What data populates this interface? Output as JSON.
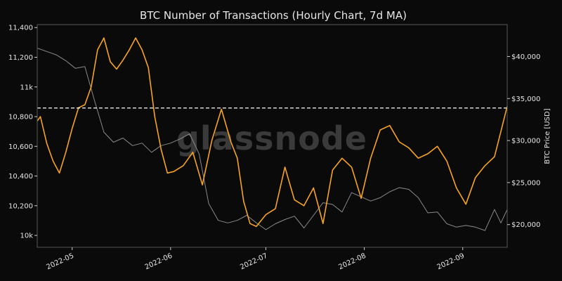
{
  "chart_data": {
    "type": "line",
    "title": "BTC Number of Transactions (Hourly Chart, 7d MA)",
    "watermark": "glassnode",
    "xlabel": "",
    "ylabel_left": "",
    "ylabel_right": "BTC Price [USD]",
    "x_ticks": [
      "2022-05",
      "2022-06",
      "2022-07",
      "2022-08",
      "2022-09"
    ],
    "y_left_ticks": [
      {
        "value": 10000,
        "label": "10k"
      },
      {
        "value": 10200,
        "label": "10,200"
      },
      {
        "value": 10400,
        "label": "10,400"
      },
      {
        "value": 10600,
        "label": "10,600"
      },
      {
        "value": 10800,
        "label": "10,800"
      },
      {
        "value": 11000,
        "label": "11k"
      },
      {
        "value": 11200,
        "label": "11,200"
      },
      {
        "value": 11400,
        "label": "11,400"
      }
    ],
    "y_right_ticks": [
      {
        "value": 20000,
        "label": "$20,000"
      },
      {
        "value": 25000,
        "label": "$25,000"
      },
      {
        "value": 30000,
        "label": "$30,000"
      },
      {
        "value": 35000,
        "label": "$35,000"
      },
      {
        "value": 40000,
        "label": "$40,000"
      }
    ],
    "ylim_left": [
      9920,
      11420
    ],
    "ylim_right": [
      17300,
      43800
    ],
    "xlim": [
      "2022-04-20",
      "2022-09-15"
    ],
    "grid": false,
    "reference_line": {
      "y": 10858,
      "style": "dashed",
      "color": "#ffffff"
    },
    "series": [
      {
        "axis": "left",
        "color": "#f7a325",
        "x": [
          "2022-04-20",
          "2022-04-21",
          "2022-04-23",
          "2022-04-25",
          "2022-04-27",
          "2022-04-29",
          "2022-05-01",
          "2022-05-03",
          "2022-05-05",
          "2022-05-07",
          "2022-05-09",
          "2022-05-11",
          "2022-05-13",
          "2022-05-15",
          "2022-05-17",
          "2022-05-19",
          "2022-05-21",
          "2022-05-23",
          "2022-05-25",
          "2022-05-27",
          "2022-05-29",
          "2022-05-31",
          "2022-06-02",
          "2022-06-05",
          "2022-06-08",
          "2022-06-11",
          "2022-06-14",
          "2022-06-17",
          "2022-06-20",
          "2022-06-22",
          "2022-06-24",
          "2022-06-26",
          "2022-06-28",
          "2022-07-01",
          "2022-07-04",
          "2022-07-07",
          "2022-07-10",
          "2022-07-13",
          "2022-07-16",
          "2022-07-19",
          "2022-07-22",
          "2022-07-25",
          "2022-07-28",
          "2022-07-31",
          "2022-08-03",
          "2022-08-06",
          "2022-08-09",
          "2022-08-12",
          "2022-08-15",
          "2022-08-18",
          "2022-08-21",
          "2022-08-24",
          "2022-08-27",
          "2022-08-30",
          "2022-09-02",
          "2022-09-05",
          "2022-09-08",
          "2022-09-11",
          "2022-09-13",
          "2022-09-15"
        ],
        "y": [
          10770,
          10800,
          10620,
          10500,
          10420,
          10560,
          10720,
          10860,
          10880,
          11000,
          11250,
          11330,
          11170,
          11120,
          11180,
          11250,
          11330,
          11250,
          11130,
          10800,
          10580,
          10420,
          10430,
          10470,
          10560,
          10340,
          10640,
          10850,
          10630,
          10520,
          10230,
          10080,
          10060,
          10140,
          10180,
          10460,
          10240,
          10200,
          10320,
          10080,
          10440,
          10520,
          10460,
          10250,
          10520,
          10710,
          10740,
          10630,
          10590,
          10520,
          10550,
          10600,
          10500,
          10320,
          10210,
          10390,
          10470,
          10530,
          10700,
          10870
        ]
      },
      {
        "axis": "right",
        "color": "#8a8a8a",
        "x": [
          "2022-04-20",
          "2022-04-23",
          "2022-04-26",
          "2022-04-29",
          "2022-05-02",
          "2022-05-05",
          "2022-05-08",
          "2022-05-11",
          "2022-05-14",
          "2022-05-17",
          "2022-05-20",
          "2022-05-23",
          "2022-05-26",
          "2022-05-29",
          "2022-06-01",
          "2022-06-04",
          "2022-06-07",
          "2022-06-10",
          "2022-06-13",
          "2022-06-16",
          "2022-06-19",
          "2022-06-22",
          "2022-06-25",
          "2022-06-28",
          "2022-07-01",
          "2022-07-04",
          "2022-07-07",
          "2022-07-10",
          "2022-07-13",
          "2022-07-16",
          "2022-07-19",
          "2022-07-22",
          "2022-07-25",
          "2022-07-28",
          "2022-07-31",
          "2022-08-03",
          "2022-08-06",
          "2022-08-09",
          "2022-08-12",
          "2022-08-15",
          "2022-08-18",
          "2022-08-21",
          "2022-08-24",
          "2022-08-27",
          "2022-08-30",
          "2022-09-02",
          "2022-09-05",
          "2022-09-08",
          "2022-09-11",
          "2022-09-13",
          "2022-09-15"
        ],
        "y": [
          41000,
          40600,
          40200,
          39500,
          38600,
          38800,
          34800,
          31000,
          29800,
          30300,
          29400,
          29700,
          28600,
          29400,
          29700,
          30200,
          30800,
          28400,
          22500,
          20500,
          20200,
          20500,
          21100,
          20200,
          19400,
          20100,
          20600,
          21000,
          19600,
          21100,
          22600,
          22400,
          21500,
          23800,
          23300,
          22800,
          23200,
          23900,
          24400,
          24200,
          23200,
          21400,
          21500,
          20100,
          19700,
          19900,
          19700,
          19300,
          21800,
          20200,
          21800
        ]
      }
    ]
  }
}
